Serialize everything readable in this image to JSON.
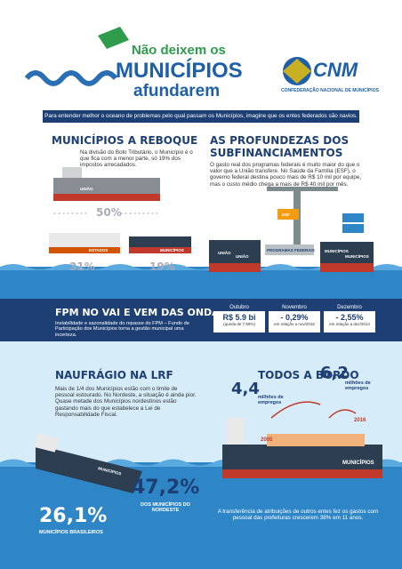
{
  "header": {
    "title_line1": "Não deixem os",
    "title_line2": "MUNICÍPIOS",
    "title_line3": "afundarem",
    "logo": "CNM",
    "logo_subtitle": "CONFEDERAÇÃO NACIONAL DE MUNICÍPIOS"
  },
  "intro": "Para entender melhor o oceano de problemas pelo qual passam os Municípios, imagine que os entes federados são navios.",
  "reboque": {
    "title": "MUNICÍPIOS A REBOQUE",
    "text": "Na divisão do Bolo Tributário, o Município é o que fica com a menor parte, só 19% dos impostos arrecadados.",
    "shares": [
      "50%",
      "31%",
      "19%"
    ],
    "ships": [
      "UNIÃO",
      "ESTADOS",
      "MUNICÍPIOS"
    ]
  },
  "subfinanciamentos": {
    "title_line1": "AS PROFUNDEZAS DOS",
    "title_line2": "SUBFINANCIAMENTOS",
    "text": "O gasto real dos programas federais é muito maior do que o valor que a União transfere. No Saúde da Família (ESF), o governo federal destina pouco mais de R$ 10 mil por equipe, mas o custo médio chega a mais de R$ 40 mil por mês.",
    "crane_label": "ESF",
    "platform_label": "PROGRAMAS FEDERAIS",
    "ships": [
      "UNIÃO",
      "UNIÃO",
      "MUNICÍPIOS",
      "MUNICÍPIOS"
    ]
  },
  "fpm": {
    "title": "FPM NO VAI E VEM DAS ONDAS",
    "text": "Instabilidade e sazonalidade do repasse do FPM – Fundo de Participação dos Municípios torna a gestão municipal uma incerteza.",
    "months": [
      {
        "month": "Outubro",
        "value": "R$ 5.9 bi",
        "note": "(queda de 7.59%)"
      },
      {
        "month": "Novembro",
        "value": "- 0,29%",
        "note": "em relação a nov/2016"
      },
      {
        "month": "Dezembro",
        "value": "- 2,55%",
        "note": "em relação a dez/2014"
      }
    ]
  },
  "lrf": {
    "title": "NAUFRÁGIO NA LRF",
    "text": "Mais de 1/4 dos Municípios estão com o limite de pessoal estourado. No Nordeste, a situação é ainda pior. Quase metade dos Municípios nordestinos estão gastando mais do que estabelece a Lei de Responsabilidade Fiscal.",
    "ship": "MUNICÍPIOS",
    "nordeste_value": "47,2%",
    "nordeste_label": "DOS MUNICÍPIOS DO NORDESTE",
    "brasil_value": "26,1%",
    "brasil_label": "MUNICÍPIOS BRASILEIROS"
  },
  "bordo": {
    "title": "TODOS A BORDO",
    "value_2005": "4,4",
    "label_2005": "milhões de empregos",
    "year_2005": "2005",
    "value_2016": "6,2",
    "label_2016": "milhões de empregos",
    "year_2016": "2016",
    "ship": "MUNICÍPIOS",
    "text": "A transferência de atribuições de outros entes fez os gastos com pessoal das prefeituras crescerem 38% em 11 anos."
  }
}
